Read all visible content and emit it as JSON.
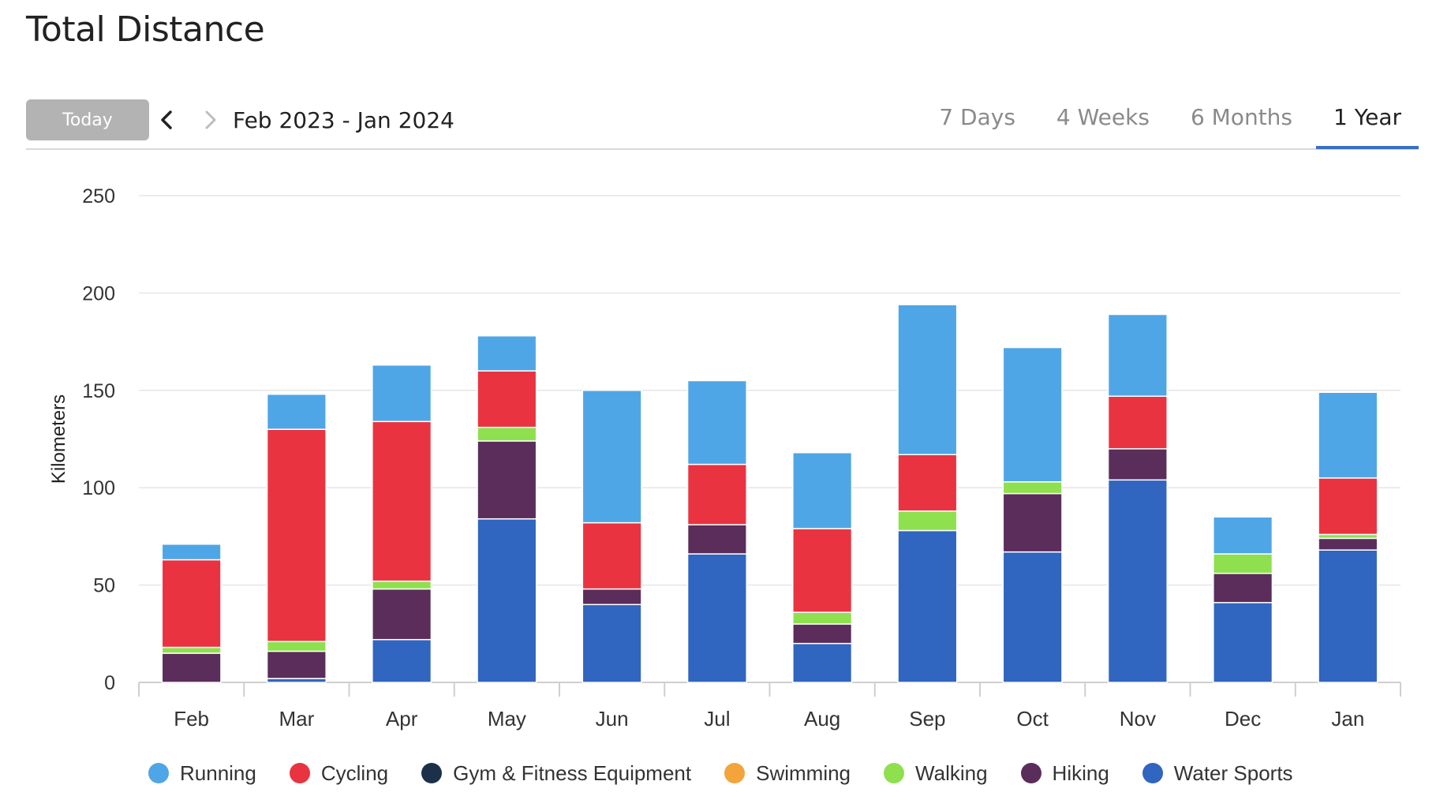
{
  "page_title": "Total Distance",
  "toolbar": {
    "today_label": "Today",
    "date_range": "Feb 2023 - Jan 2024",
    "tabs": [
      {
        "label": "7 Days",
        "active": false
      },
      {
        "label": "4 Weeks",
        "active": false
      },
      {
        "label": "6 Months",
        "active": false
      },
      {
        "label": "1 Year",
        "active": true
      }
    ],
    "accent_color": "#3a6fc4"
  },
  "chart_data": {
    "type": "bar",
    "stacked": true,
    "ylabel": "Kilometers",
    "ylim": [
      0,
      250
    ],
    "yticks": [
      0,
      50,
      100,
      150,
      200,
      250
    ],
    "grid": true,
    "legend_position": "bottom",
    "categories": [
      "Feb",
      "Mar",
      "Apr",
      "May",
      "Jun",
      "Jul",
      "Aug",
      "Sep",
      "Oct",
      "Nov",
      "Dec",
      "Jan"
    ],
    "series": [
      {
        "name": "Water Sports",
        "color": "#3065c0",
        "values": [
          0,
          2,
          22,
          84,
          40,
          66,
          20,
          78,
          67,
          104,
          41,
          68
        ]
      },
      {
        "name": "Hiking",
        "color": "#5b2d5a",
        "values": [
          15,
          14,
          26,
          40,
          8,
          15,
          10,
          0,
          30,
          16,
          15,
          6
        ]
      },
      {
        "name": "Walking",
        "color": "#8ee04f",
        "values": [
          3,
          5,
          4,
          7,
          0,
          0,
          6,
          10,
          6,
          0,
          10,
          2
        ]
      },
      {
        "name": "Swimming",
        "color": "#f3a43a",
        "values": [
          0,
          0,
          0,
          0,
          0,
          0,
          0,
          0,
          0,
          0,
          0,
          0
        ]
      },
      {
        "name": "Gym & Fitness Equipment",
        "color": "#1c3149",
        "values": [
          0,
          0,
          0,
          0,
          0,
          0,
          0,
          0,
          0,
          0,
          0,
          0
        ]
      },
      {
        "name": "Cycling",
        "color": "#ea3340",
        "values": [
          45,
          109,
          82,
          29,
          34,
          31,
          43,
          29,
          0,
          27,
          0,
          29
        ]
      },
      {
        "name": "Running",
        "color": "#4fa6e6",
        "values": [
          8,
          18,
          29,
          18,
          68,
          43,
          39,
          77,
          69,
          42,
          19,
          44
        ]
      }
    ],
    "legend_order": [
      "Running",
      "Cycling",
      "Gym & Fitness Equipment",
      "Swimming",
      "Walking",
      "Hiking",
      "Water Sports"
    ]
  }
}
